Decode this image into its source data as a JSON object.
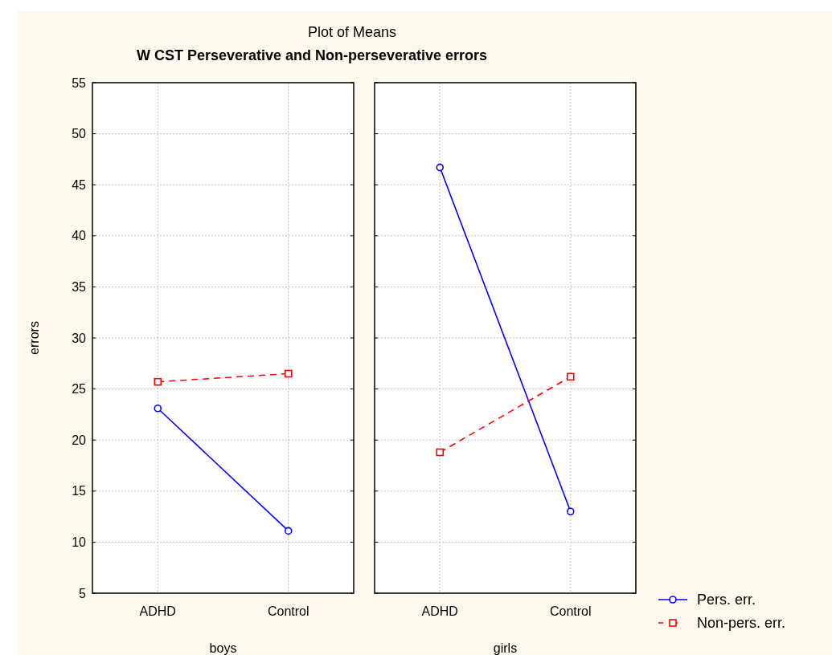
{
  "chart_data": [
    {
      "type": "line",
      "title": "Plot of Means",
      "subtitle": "W CST Perseverative and Non-perseverative errors",
      "xlabel": "boys",
      "ylabel": "errors",
      "categories": [
        "ADHD",
        "Control"
      ],
      "ylim": [
        5,
        55
      ],
      "yticks": [
        5,
        10,
        15,
        20,
        25,
        30,
        35,
        40,
        45,
        50,
        55
      ],
      "grid": true,
      "legend": false,
      "series": [
        {
          "color": "#0000ff",
          "values": [
            23.1,
            11.1
          ],
          "marker": "circle",
          "line_style": "solid"
        },
        {
          "color": "#ff0000",
          "values": [
            25.7,
            26.5
          ],
          "marker": "square",
          "line_style": "dashed"
        }
      ]
    },
    {
      "type": "line",
      "xlabel": "girls",
      "categories": [
        "ADHD",
        "Control"
      ],
      "ylim": [
        5,
        55
      ],
      "yticks": [
        5,
        10,
        15,
        20,
        25,
        30,
        35,
        40,
        45,
        50,
        55
      ],
      "tick_labels": "x",
      "grid": true,
      "legend": "bottom right",
      "series": [
        {
          "name": "Pers. err.",
          "color": "#0000ff",
          "values": [
            46.7,
            13.0
          ],
          "marker": "circle",
          "line_style": "solid"
        },
        {
          "name": "Non-pers. err.",
          "color": "#ff0000",
          "values": [
            18.8,
            26.2
          ],
          "marker": "square",
          "line_style": "dashed"
        }
      ]
    }
  ]
}
